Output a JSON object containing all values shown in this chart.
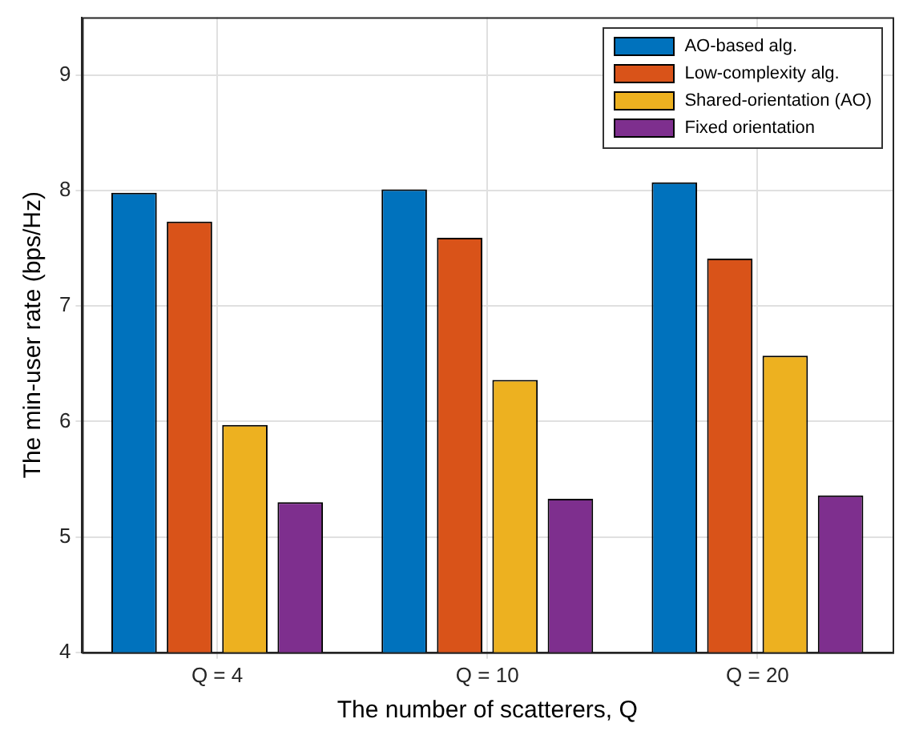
{
  "chart_data": {
    "type": "bar",
    "xlabel": "The number of scatterers, Q",
    "ylabel": "The min-user rate (bps/Hz)",
    "categories": [
      "Q = 4",
      "Q = 10",
      "Q = 20"
    ],
    "series": [
      {
        "name": "AO-based alg.",
        "color": "#0072bd",
        "values": [
          7.98,
          8.01,
          8.07
        ]
      },
      {
        "name": "Low-complexity alg.",
        "color": "#d95319",
        "values": [
          7.73,
          7.59,
          7.41
        ]
      },
      {
        "name": "Shared-orientation (AO)",
        "color": "#edb120",
        "values": [
          5.97,
          6.36,
          6.57
        ]
      },
      {
        "name": "Fixed orientation",
        "color": "#7e2f8e",
        "values": [
          5.3,
          5.33,
          5.36
        ]
      }
    ],
    "ylim": [
      4,
      9.5
    ],
    "yticks": [
      4,
      5,
      6,
      7,
      8,
      9
    ],
    "grid": true,
    "legend": "top right"
  }
}
